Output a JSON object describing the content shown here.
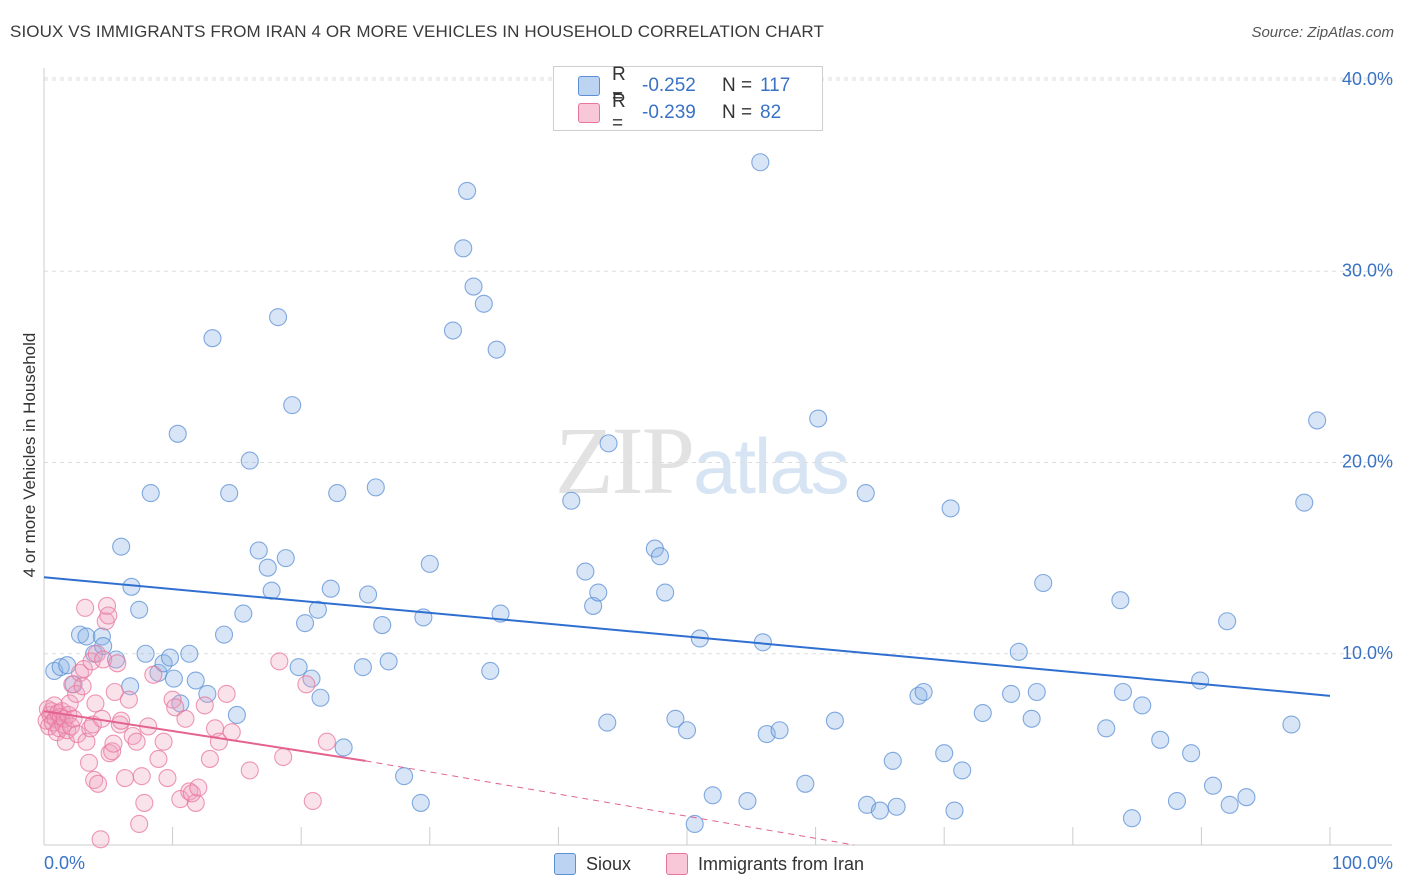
{
  "title": "SIOUX VS IMMIGRANTS FROM IRAN 4 OR MORE VEHICLES IN HOUSEHOLD CORRELATION CHART",
  "source": "Source: ZipAtlas.com",
  "watermark": {
    "zip": "ZIP",
    "atlas": "atlas"
  },
  "legend_top": {
    "rows": [
      {
        "r_label": "R =",
        "r_value": "-0.252",
        "n_label": "N =",
        "n_value": "117"
      },
      {
        "r_label": "R =",
        "r_value": "-0.239",
        "n_label": "N =",
        "n_value": "82"
      }
    ]
  },
  "chart_data": {
    "type": "scatter",
    "title": "SIOUX VS IMMIGRANTS FROM IRAN 4 OR MORE VEHICLES IN HOUSEHOLD CORRELATION CHART",
    "xlabel": "",
    "ylabel": "4 or more Vehicles in Household",
    "xlim": [
      0,
      100
    ],
    "ylim": [
      0,
      40
    ],
    "x_tick_labels": [
      "0.0%",
      "100.0%"
    ],
    "y_ticks": [
      10,
      20,
      30,
      40
    ],
    "y_tick_labels": [
      "10.0%",
      "20.0%",
      "30.0%",
      "40.0%"
    ],
    "grid": true,
    "legend_position": "bottom",
    "colors": {
      "sioux": "#5b8fd6",
      "iran": "#e8759c"
    },
    "series": [
      {
        "name": "Sioux",
        "color": "#5b8fd6",
        "trend": {
          "x": [
            0,
            100
          ],
          "y": [
            14.0,
            7.8
          ]
        },
        "points": [
          [
            0.8,
            9.1
          ],
          [
            1.3,
            9.3
          ],
          [
            1.8,
            9.4
          ],
          [
            2.3,
            8.4
          ],
          [
            2.8,
            11.0
          ],
          [
            3.3,
            10.9
          ],
          [
            3.9,
            10.0
          ],
          [
            4.5,
            10.9
          ],
          [
            4.6,
            10.4
          ],
          [
            5.6,
            9.7
          ],
          [
            6.0,
            15.6
          ],
          [
            6.7,
            8.3
          ],
          [
            6.8,
            13.5
          ],
          [
            7.4,
            12.3
          ],
          [
            7.9,
            10.0
          ],
          [
            8.3,
            18.4
          ],
          [
            8.9,
            9.0
          ],
          [
            9.3,
            9.5
          ],
          [
            9.8,
            9.8
          ],
          [
            10.1,
            8.7
          ],
          [
            10.4,
            21.5
          ],
          [
            10.6,
            7.4
          ],
          [
            11.3,
            10.0
          ],
          [
            11.8,
            8.6
          ],
          [
            12.7,
            7.9
          ],
          [
            13.1,
            26.5
          ],
          [
            14.0,
            11.0
          ],
          [
            14.4,
            18.4
          ],
          [
            15.0,
            6.8
          ],
          [
            15.5,
            12.1
          ],
          [
            16.0,
            20.1
          ],
          [
            16.7,
            15.4
          ],
          [
            17.4,
            14.5
          ],
          [
            17.7,
            13.3
          ],
          [
            18.2,
            27.6
          ],
          [
            18.8,
            15.0
          ],
          [
            19.3,
            23.0
          ],
          [
            19.8,
            9.3
          ],
          [
            20.3,
            11.6
          ],
          [
            20.8,
            8.7
          ],
          [
            21.3,
            12.3
          ],
          [
            21.5,
            7.7
          ],
          [
            22.3,
            13.4
          ],
          [
            22.8,
            18.4
          ],
          [
            23.3,
            5.1
          ],
          [
            24.8,
            9.3
          ],
          [
            25.2,
            13.1
          ],
          [
            25.8,
            18.7
          ],
          [
            26.3,
            11.5
          ],
          [
            26.8,
            9.6
          ],
          [
            28.0,
            3.6
          ],
          [
            29.3,
            2.2
          ],
          [
            29.5,
            11.9
          ],
          [
            30.0,
            14.7
          ],
          [
            31.8,
            26.9
          ],
          [
            32.6,
            31.2
          ],
          [
            32.9,
            34.2
          ],
          [
            33.4,
            29.2
          ],
          [
            34.2,
            28.3
          ],
          [
            34.7,
            9.1
          ],
          [
            35.2,
            25.9
          ],
          [
            35.5,
            12.1
          ],
          [
            41.0,
            18.0
          ],
          [
            42.1,
            14.3
          ],
          [
            42.7,
            12.5
          ],
          [
            43.1,
            13.2
          ],
          [
            43.8,
            6.4
          ],
          [
            43.9,
            21.0
          ],
          [
            47.5,
            15.5
          ],
          [
            47.9,
            15.1
          ],
          [
            48.3,
            13.2
          ],
          [
            49.1,
            6.6
          ],
          [
            50.6,
            1.1
          ],
          [
            51.0,
            10.8
          ],
          [
            52.0,
            2.6
          ],
          [
            54.7,
            2.3
          ],
          [
            55.7,
            35.7
          ],
          [
            55.9,
            10.6
          ],
          [
            56.2,
            5.8
          ],
          [
            57.2,
            6.0
          ],
          [
            59.2,
            3.2
          ],
          [
            60.2,
            22.3
          ],
          [
            61.5,
            6.5
          ],
          [
            63.9,
            18.4
          ],
          [
            64.0,
            2.1
          ],
          [
            65.0,
            1.8
          ],
          [
            66.0,
            4.4
          ],
          [
            66.3,
            2.0
          ],
          [
            68.0,
            7.8
          ],
          [
            68.4,
            8.0
          ],
          [
            70.0,
            4.8
          ],
          [
            70.5,
            17.6
          ],
          [
            70.8,
            1.8
          ],
          [
            71.4,
            3.9
          ],
          [
            73.0,
            6.9
          ],
          [
            75.2,
            7.9
          ],
          [
            75.8,
            10.1
          ],
          [
            76.8,
            6.6
          ],
          [
            77.2,
            8.0
          ],
          [
            77.7,
            13.7
          ],
          [
            82.6,
            6.1
          ],
          [
            83.7,
            12.8
          ],
          [
            83.9,
            8.0
          ],
          [
            84.6,
            1.4
          ],
          [
            85.4,
            7.3
          ],
          [
            86.8,
            5.5
          ],
          [
            88.1,
            2.3
          ],
          [
            89.2,
            4.8
          ],
          [
            89.9,
            8.6
          ],
          [
            90.9,
            3.1
          ],
          [
            92.0,
            11.7
          ],
          [
            92.2,
            2.1
          ],
          [
            93.5,
            2.5
          ],
          [
            97.0,
            6.3
          ],
          [
            98.0,
            17.9
          ],
          [
            99.0,
            22.2
          ],
          [
            50.0,
            6.0
          ]
        ]
      },
      {
        "name": "Immigrants from Iran",
        "color": "#e8759c",
        "trend": {
          "x": [
            0,
            25
          ],
          "y": [
            7.0,
            4.4
          ]
        },
        "trend_dashed": {
          "x": [
            25,
            63
          ],
          "y": [
            4.4,
            0.0
          ]
        },
        "points": [
          [
            0.2,
            6.5
          ],
          [
            0.3,
            7.1
          ],
          [
            0.4,
            6.2
          ],
          [
            0.5,
            6.8
          ],
          [
            0.6,
            7.0
          ],
          [
            0.7,
            6.4
          ],
          [
            0.8,
            7.3
          ],
          [
            0.9,
            6.6
          ],
          [
            1.0,
            5.9
          ],
          [
            1.1,
            6.9
          ],
          [
            1.2,
            6.1
          ],
          [
            1.3,
            6.7
          ],
          [
            1.4,
            7.0
          ],
          [
            1.5,
            6.3
          ],
          [
            1.6,
            6.6
          ],
          [
            1.7,
            5.4
          ],
          [
            1.8,
            6.0
          ],
          [
            1.9,
            6.8
          ],
          [
            2.0,
            7.4
          ],
          [
            2.1,
            6.2
          ],
          [
            2.2,
            8.4
          ],
          [
            2.3,
            6.6
          ],
          [
            2.5,
            7.9
          ],
          [
            2.6,
            5.8
          ],
          [
            2.8,
            9.0
          ],
          [
            3.0,
            8.3
          ],
          [
            3.1,
            9.2
          ],
          [
            3.2,
            12.4
          ],
          [
            3.3,
            5.4
          ],
          [
            3.5,
            4.3
          ],
          [
            3.6,
            6.1
          ],
          [
            3.7,
            9.6
          ],
          [
            3.8,
            6.3
          ],
          [
            3.9,
            3.4
          ],
          [
            4.0,
            7.4
          ],
          [
            4.1,
            10.0
          ],
          [
            4.2,
            3.2
          ],
          [
            4.4,
            0.3
          ],
          [
            4.5,
            6.6
          ],
          [
            4.6,
            9.7
          ],
          [
            4.8,
            11.7
          ],
          [
            4.9,
            12.5
          ],
          [
            5.0,
            12.0
          ],
          [
            5.1,
            4.8
          ],
          [
            5.3,
            4.9
          ],
          [
            5.4,
            5.3
          ],
          [
            5.5,
            8.0
          ],
          [
            5.7,
            9.5
          ],
          [
            5.9,
            6.3
          ],
          [
            6.0,
            6.5
          ],
          [
            6.3,
            3.5
          ],
          [
            6.6,
            7.6
          ],
          [
            6.9,
            5.7
          ],
          [
            7.2,
            5.4
          ],
          [
            7.4,
            1.1
          ],
          [
            7.6,
            3.6
          ],
          [
            7.8,
            2.2
          ],
          [
            8.1,
            6.2
          ],
          [
            8.5,
            8.9
          ],
          [
            8.9,
            4.5
          ],
          [
            9.3,
            5.4
          ],
          [
            9.6,
            3.5
          ],
          [
            10.0,
            7.6
          ],
          [
            10.2,
            7.2
          ],
          [
            10.6,
            2.4
          ],
          [
            11.0,
            6.6
          ],
          [
            11.3,
            2.8
          ],
          [
            11.8,
            2.2
          ],
          [
            12.5,
            7.3
          ],
          [
            12.9,
            4.5
          ],
          [
            13.3,
            6.1
          ],
          [
            13.6,
            5.4
          ],
          [
            14.2,
            7.9
          ],
          [
            14.6,
            5.9
          ],
          [
            16.0,
            3.9
          ],
          [
            18.3,
            9.6
          ],
          [
            18.6,
            4.6
          ],
          [
            20.4,
            8.4
          ],
          [
            20.9,
            2.3
          ],
          [
            22.0,
            5.4
          ],
          [
            11.5,
            2.7
          ],
          [
            12.0,
            3.0
          ]
        ]
      }
    ]
  },
  "legend_bottom": {
    "items": [
      "Sioux",
      "Immigrants from Iran"
    ]
  }
}
